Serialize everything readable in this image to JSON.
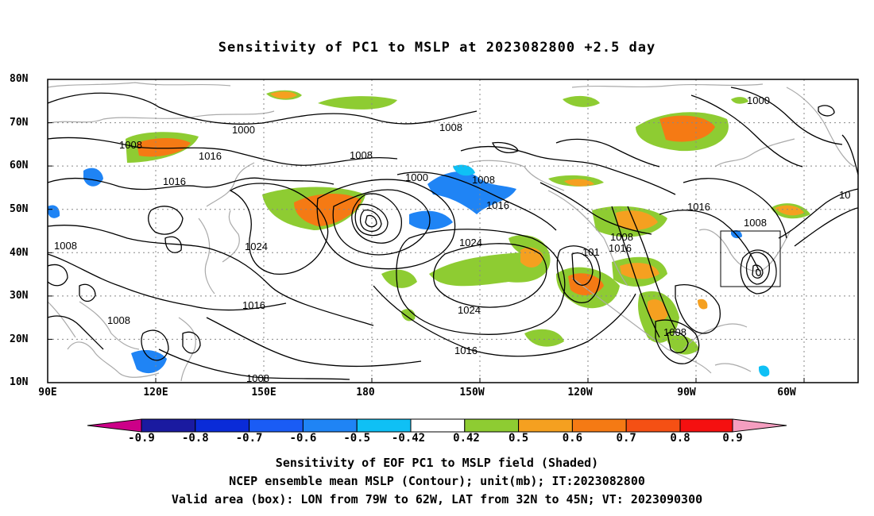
{
  "title": "Sensitivity of PC1 to MSLP at 2023082800 +2.5 day",
  "lat_labels": [
    "80N",
    "70N",
    "60N",
    "50N",
    "40N",
    "30N",
    "20N",
    "10N"
  ],
  "lon_labels": [
    "90E",
    "120E",
    "150E",
    "180",
    "150W",
    "120W",
    "90W",
    "60W"
  ],
  "contour_labels": [
    "1000",
    "1008",
    "1016",
    "1016",
    "1008",
    "1024",
    "1016",
    "1008",
    "1000",
    "1008",
    "1016",
    "1024",
    "1024",
    "1016",
    "1008",
    "101",
    "1016",
    "1008",
    "1008",
    "1016",
    "1008",
    "1000",
    "10",
    "1008"
  ],
  "colorbar": {
    "labels": [
      "-0.9",
      "-0.8",
      "-0.7",
      "-0.6",
      "-0.5",
      "-0.42",
      "0.42",
      "0.5",
      "0.6",
      "0.7",
      "0.8",
      "0.9"
    ],
    "colors": [
      "#cc0088",
      "#1a1aa0",
      "#0a2bd8",
      "#1a5cf5",
      "#1f84f5",
      "#0fc0f5",
      "#ffffff",
      "#8ecc32",
      "#f5a020",
      "#f57a14",
      "#f55014",
      "#f51010",
      "#f59ec0"
    ]
  },
  "captions": [
    "Sensitivity of EOF PC1 to MSLP field (Shaded)",
    "NCEP ensemble mean MSLP (Contour); unit(mb); IT:2023082800",
    "Valid area (box): LON from 79W to 62W, LAT from 32N to 45N; VT: 2023090300"
  ],
  "map_data": {
    "lon_range": [
      "90E",
      "50W"
    ],
    "lat_range": [
      "10N",
      "80N"
    ],
    "valid_box": {
      "lon": [
        "79W",
        "62W"
      ],
      "lat": [
        "32N",
        "45N"
      ]
    },
    "colors": {
      "contour": "#000000",
      "coast": "#aaaaaa",
      "grid": "#888888"
    }
  }
}
